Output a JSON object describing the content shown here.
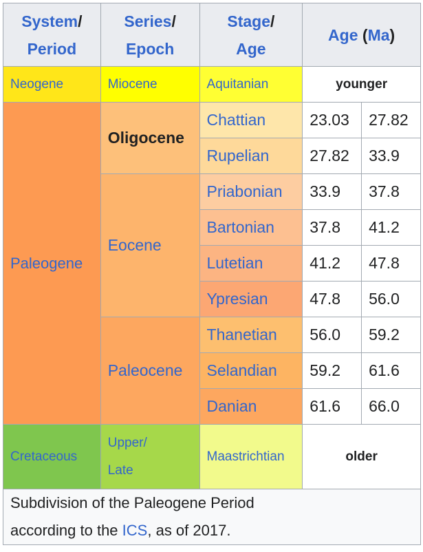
{
  "header": {
    "col1_top": "System",
    "col1_bottom": "Period",
    "col2_top": "Series",
    "col2_bottom": "Epoch",
    "col3_top": "Stage",
    "col3_bottom": "Age",
    "col4_label": "Age",
    "col4_unit": "Ma",
    "separator": "/"
  },
  "neogene": {
    "system": "Neogene",
    "series": "Miocene",
    "stage": "Aquitanian",
    "age_note": "younger"
  },
  "paleogene": {
    "system": "Paleogene",
    "oligocene": "Oligocene",
    "eocene": "Eocene",
    "paleocene": "Paleocene",
    "stages": [
      {
        "name": "Chattian",
        "start": "23.03",
        "end": "27.82"
      },
      {
        "name": "Rupelian",
        "start": "27.82",
        "end": "33.9"
      },
      {
        "name": "Priabonian",
        "start": "33.9",
        "end": "37.8"
      },
      {
        "name": "Bartonian",
        "start": "37.8",
        "end": "41.2"
      },
      {
        "name": "Lutetian",
        "start": "41.2",
        "end": "47.8"
      },
      {
        "name": "Ypresian",
        "start": "47.8",
        "end": "56.0"
      },
      {
        "name": "Thanetian",
        "start": "56.0",
        "end": "59.2"
      },
      {
        "name": "Selandian",
        "start": "59.2",
        "end": "61.6"
      },
      {
        "name": "Danian",
        "start": "61.6",
        "end": "66.0"
      }
    ]
  },
  "cretaceous": {
    "system": "Cretaceous",
    "series_top": "Upper/",
    "series_bottom": "Late",
    "stage": "Maastrichtian",
    "age_note": "older"
  },
  "caption": {
    "line1": "Subdivision of the Paleogene Period",
    "line2_pre": "according to the ",
    "link": "ICS",
    "line2_post": ", as of 2017."
  },
  "colors": {
    "paleogene": "#fd9a52",
    "oligocene": "#fdc07a",
    "eocene": "#fdb46c",
    "paleocene": "#fda75f",
    "chattian": "#fee6aa",
    "rupelian": "#fed99a",
    "priabonian": "#fdcda1",
    "bartonian": "#fdc091",
    "lutetian": "#fcb482",
    "ypresian": "#fca773",
    "thanetian": "#fdbf6f",
    "selandian": "#fdb462",
    "danian": "#fda75f"
  }
}
